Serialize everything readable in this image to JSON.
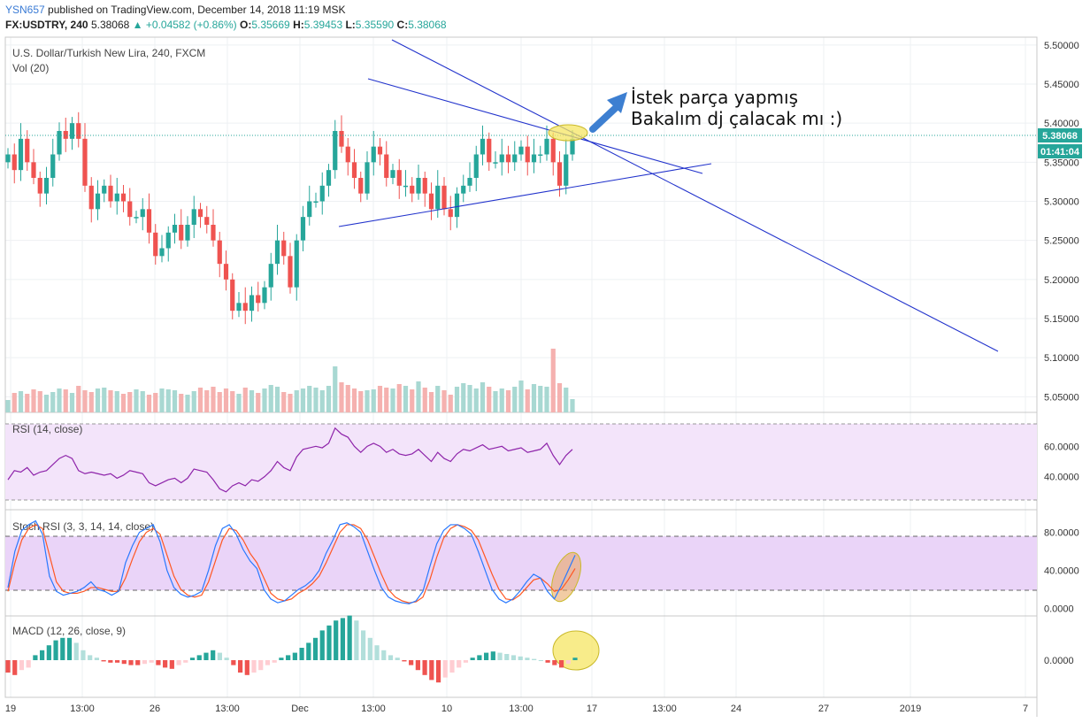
{
  "header": {
    "author": "YSN657",
    "published_text": "published on TradingView.com, December 14, 2018 11:19 MSK",
    "symbol_interval": "FX:USDTRY, 240",
    "last": "5.38068",
    "change": "▲ +0.04582 (+0.86%)",
    "o_label": "O:",
    "o": "5.35669",
    "h_label": "H:",
    "h": "5.39453",
    "l_label": "L:",
    "l": "5.35590",
    "c_label": "C:",
    "c": "5.38068"
  },
  "colors": {
    "up": "#26a69a",
    "down": "#ef5350",
    "trend": "#2233cc",
    "rsi": "#8e24aa",
    "stochK": "#2979ff",
    "stochD": "#ff5722",
    "macd": "#2979ff",
    "signal": "#ff6d00",
    "ellipse": "#f5e663",
    "arrow": "#3d7fd1"
  },
  "chart_data": [
    {
      "type": "candlestick",
      "title": "U.S. Dollar/Turkish New Lira, 240, FXCM",
      "volume_label": "Vol (20)",
      "ylim": [
        5.03,
        5.51
      ],
      "y_ticks": [
        "5.50000",
        "5.45000",
        "5.40000",
        "5.35000",
        "5.30000",
        "5.25000",
        "5.20000",
        "5.15000",
        "5.10000",
        "5.05000"
      ],
      "last_price_label": "5.38068",
      "countdown_label": "01:41:04",
      "close": [
        5.36,
        5.34,
        5.38,
        5.35,
        5.33,
        5.31,
        5.33,
        5.36,
        5.39,
        5.38,
        5.4,
        5.38,
        5.32,
        5.29,
        5.31,
        5.32,
        5.3,
        5.31,
        5.3,
        5.28,
        5.28,
        5.29,
        5.26,
        5.23,
        5.24,
        5.26,
        5.27,
        5.25,
        5.27,
        5.29,
        5.28,
        5.27,
        5.25,
        5.22,
        5.2,
        5.16,
        5.17,
        5.16,
        5.18,
        5.17,
        5.19,
        5.22,
        5.25,
        5.23,
        5.19,
        5.25,
        5.28,
        5.3,
        5.3,
        5.32,
        5.34,
        5.39,
        5.37,
        5.35,
        5.33,
        5.31,
        5.35,
        5.37,
        5.36,
        5.33,
        5.34,
        5.32,
        5.32,
        5.31,
        5.33,
        5.31,
        5.29,
        5.32,
        5.29,
        5.28,
        5.31,
        5.32,
        5.33,
        5.36,
        5.38,
        5.35,
        5.35,
        5.36,
        5.35,
        5.36,
        5.37,
        5.35,
        5.36,
        5.36,
        5.38,
        5.35,
        5.32,
        5.36,
        5.38
      ],
      "volume_pct": [
        0.14,
        0.22,
        0.24,
        0.21,
        0.26,
        0.24,
        0.2,
        0.23,
        0.27,
        0.26,
        0.22,
        0.3,
        0.25,
        0.23,
        0.27,
        0.28,
        0.25,
        0.24,
        0.21,
        0.23,
        0.26,
        0.24,
        0.2,
        0.22,
        0.27,
        0.26,
        0.25,
        0.21,
        0.2,
        0.24,
        0.28,
        0.25,
        0.29,
        0.23,
        0.27,
        0.24,
        0.21,
        0.28,
        0.25,
        0.22,
        0.27,
        0.31,
        0.29,
        0.23,
        0.21,
        0.25,
        0.27,
        0.3,
        0.28,
        0.25,
        0.3,
        0.52,
        0.34,
        0.31,
        0.27,
        0.24,
        0.25,
        0.26,
        0.3,
        0.28,
        0.27,
        0.32,
        0.3,
        0.26,
        0.35,
        0.28,
        0.23,
        0.3,
        0.25,
        0.2,
        0.29,
        0.33,
        0.31,
        0.27,
        0.34,
        0.29,
        0.24,
        0.27,
        0.25,
        0.29,
        0.36,
        0.26,
        0.32,
        0.3,
        0.29,
        0.72,
        0.33,
        0.28,
        0.15
      ],
      "trendlines_note": "drawn"
    },
    {
      "type": "line",
      "title": "RSI (14, close)",
      "ylim": [
        20,
        80
      ],
      "y_ticks": [
        "60.0000",
        "40.0000"
      ],
      "band": [
        30,
        70
      ],
      "values": [
        38,
        44,
        43,
        46,
        41,
        43,
        44,
        48,
        52,
        54,
        52,
        44,
        42,
        43,
        42,
        41,
        42,
        39,
        41,
        44,
        43,
        42,
        36,
        34,
        36,
        38,
        39,
        36,
        39,
        45,
        44,
        43,
        38,
        32,
        30,
        34,
        36,
        34,
        38,
        37,
        40,
        44,
        50,
        46,
        44,
        53,
        58,
        59,
        60,
        59,
        62,
        72,
        68,
        66,
        60,
        56,
        60,
        62,
        60,
        56,
        58,
        55,
        54,
        55,
        58,
        54,
        50,
        56,
        52,
        50,
        55,
        58,
        57,
        59,
        61,
        58,
        59,
        60,
        57,
        58,
        59,
        56,
        57,
        58,
        62,
        54,
        48,
        54,
        58
      ]
    },
    {
      "type": "line",
      "title": "Stoch RSI (3, 3, 14, 14, close)",
      "ylim": [
        -5,
        100
      ],
      "y_ticks": [
        "80.0000",
        "40.0000",
        "0.0000"
      ],
      "band": [
        20,
        80
      ],
      "series": [
        {
          "values": [
            22,
            60,
            82,
            88,
            92,
            78,
            34,
            18,
            14,
            16,
            18,
            22,
            28,
            20,
            18,
            14,
            18,
            48,
            66,
            80,
            84,
            88,
            70,
            40,
            22,
            15,
            12,
            14,
            18,
            40,
            66,
            84,
            88,
            78,
            62,
            50,
            42,
            20,
            10,
            6,
            8,
            14,
            20,
            24,
            30,
            40,
            58,
            72,
            88,
            90,
            86,
            80,
            60,
            40,
            22,
            12,
            8,
            6,
            5,
            8,
            18,
            44,
            68,
            82,
            88,
            88,
            84,
            78,
            60,
            40,
            20,
            10,
            6,
            10,
            18,
            28,
            36,
            32,
            18,
            10,
            24,
            40,
            56
          ]
        },
        {
          "values": [
            18,
            48,
            72,
            84,
            88,
            84,
            56,
            28,
            18,
            16,
            16,
            18,
            22,
            22,
            20,
            18,
            18,
            32,
            52,
            70,
            80,
            84,
            78,
            56,
            34,
            20,
            14,
            12,
            14,
            28,
            50,
            72,
            84,
            82,
            72,
            58,
            48,
            32,
            16,
            10,
            8,
            10,
            16,
            20,
            26,
            34,
            48,
            64,
            80,
            88,
            88,
            84,
            72,
            54,
            36,
            20,
            12,
            8,
            6,
            7,
            12,
            30,
            54,
            74,
            84,
            88,
            86,
            82,
            72,
            54,
            36,
            20,
            10,
            9,
            14,
            22,
            30,
            32,
            26,
            18,
            20,
            30,
            42
          ]
        }
      ]
    },
    {
      "type": "bar",
      "title": "MACD (12, 26, close, 9)",
      "y_ticks": [
        "0.0000"
      ],
      "values": [
        -0.5,
        -0.6,
        -0.4,
        -0.3,
        0.2,
        0.4,
        0.6,
        0.8,
        0.9,
        0.9,
        0.7,
        0.4,
        0.2,
        0.1,
        -0.05,
        -0.1,
        -0.1,
        -0.15,
        -0.2,
        -0.2,
        -0.15,
        -0.1,
        -0.2,
        -0.3,
        -0.35,
        -0.2,
        -0.1,
        0.1,
        0.2,
        0.3,
        0.4,
        0.3,
        0.1,
        -0.2,
        -0.5,
        -0.6,
        -0.5,
        -0.4,
        -0.2,
        -0.1,
        0.1,
        0.2,
        0.3,
        0.5,
        0.7,
        0.9,
        1.2,
        1.4,
        1.6,
        1.7,
        1.8,
        1.6,
        1.2,
        0.9,
        0.6,
        0.4,
        0.2,
        0.1,
        -0.05,
        -0.2,
        -0.4,
        -0.6,
        -0.8,
        -0.9,
        -0.7,
        -0.5,
        -0.3,
        -0.1,
        0.1,
        0.2,
        0.3,
        0.35,
        0.3,
        0.25,
        0.2,
        0.15,
        0.1,
        0.05,
        0.0,
        -0.1,
        -0.2,
        -0.3,
        -0.15,
        0.1
      ]
    }
  ],
  "x_axis": {
    "ticks": [
      "19",
      "13:00",
      "26",
      "13:00",
      "Dec",
      "13:00",
      "10",
      "13:00",
      "17",
      "13:00",
      "24",
      "27",
      "2019",
      "7"
    ]
  },
  "annotation": {
    "line1": "İstek parça yapmış",
    "line2": "Bakalım dj çalacak mı :)"
  }
}
